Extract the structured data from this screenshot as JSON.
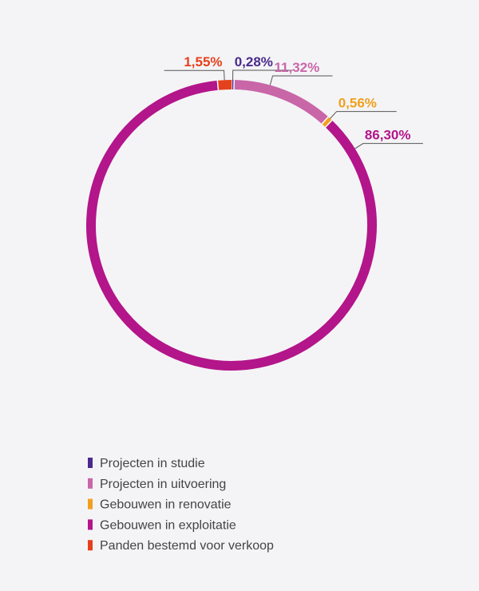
{
  "chart_data": {
    "type": "donut",
    "categories": [
      "Projecten in studie",
      "Projecten in uitvoering",
      "Gebouwen in renovatie",
      "Gebouwen in exploitatie",
      "Panden bestemd voor verkoop"
    ],
    "values": [
      0.28,
      11.32,
      0.56,
      86.3,
      1.55
    ],
    "value_labels": [
      "0,28%",
      "11,32%",
      "0,56%",
      "86,30%",
      "1,55%"
    ],
    "colors": [
      "#4a2a8c",
      "#c966a8",
      "#f0a01e",
      "#b3158a",
      "#e5411c"
    ]
  }
}
